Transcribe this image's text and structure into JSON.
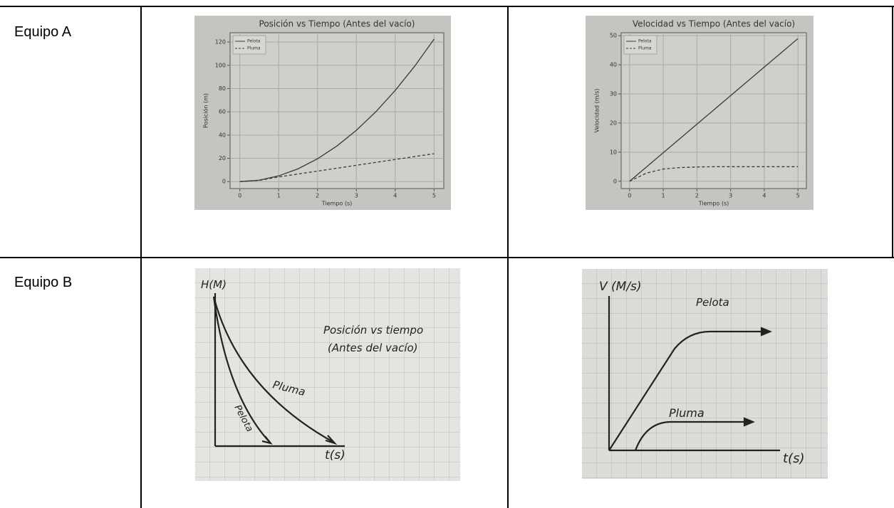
{
  "table": {
    "rows": [
      {
        "label": "Equipo A",
        "charts": [
          {
            "type": "line",
            "title": "Posición vs Tiempo (Antes del vacío)",
            "xlabel": "Tiempo (s)",
            "ylabel": "Posición (m)",
            "x": [
              0,
              0.5,
              1,
              1.5,
              2,
              2.5,
              3,
              3.5,
              4,
              4.5,
              5
            ],
            "series": [
              {
                "name": "Pelota",
                "color": "#3a3a3a",
                "dashed": false,
                "values": [
                  0,
                  1.2,
                  4.9,
                  11,
                  19.6,
                  30.6,
                  44.1,
                  60,
                  78.4,
                  99.2,
                  122.5
                ]
              },
              {
                "name": "Pluma",
                "color": "#3a3a3a",
                "dashed": true,
                "values": [
                  0,
                  1,
                  4,
                  6.5,
                  9,
                  11.5,
                  14,
                  16.5,
                  19,
                  21.5,
                  24
                ]
              }
            ],
            "xlim": [
              -0.25,
              5.25
            ],
            "ylim": [
              -6,
              128
            ],
            "xticks": [
              0,
              1,
              2,
              3,
              4,
              5
            ],
            "yticks": [
              0,
              20,
              40,
              60,
              80,
              100,
              120
            ],
            "grid": true,
            "legend": "upper-left"
          },
          {
            "type": "line",
            "title": "Velocidad vs Tiempo (Antes del vacío)",
            "xlabel": "Tiempo (s)",
            "ylabel": "Velocidad (m/s)",
            "x": [
              0,
              0.5,
              1,
              1.5,
              2,
              2.5,
              3,
              3.5,
              4,
              4.5,
              5
            ],
            "series": [
              {
                "name": "Pelota",
                "color": "#3a3a3a",
                "dashed": false,
                "values": [
                  0,
                  4.9,
                  9.8,
                  14.7,
                  19.6,
                  24.5,
                  29.4,
                  34.3,
                  39.2,
                  44.1,
                  49
                ]
              },
              {
                "name": "Pluma",
                "color": "#3a3a3a",
                "dashed": true,
                "values": [
                  0,
                  2.8,
                  4.2,
                  4.7,
                  4.9,
                  5,
                  5,
                  5,
                  5,
                  5,
                  5
                ]
              }
            ],
            "xlim": [
              -0.25,
              5.25
            ],
            "ylim": [
              -2.5,
              51
            ],
            "xticks": [
              0,
              1,
              2,
              3,
              4,
              5
            ],
            "yticks": [
              0,
              10,
              20,
              30,
              40,
              50
            ],
            "grid": true,
            "legend": "upper-left"
          }
        ]
      },
      {
        "label": "Equipo B",
        "sketches": [
          {
            "y_label": "H(M)",
            "title": "Posición vs tiempo",
            "subtitle": "(Antes del vacío)",
            "curves": [
              "Pluma",
              "Pelota"
            ],
            "x_label": "t(s)"
          },
          {
            "y_label": "V (M/s)",
            "curves": [
              "Pelota",
              "Pluma"
            ],
            "x_label": "t(s)"
          }
        ]
      }
    ]
  }
}
